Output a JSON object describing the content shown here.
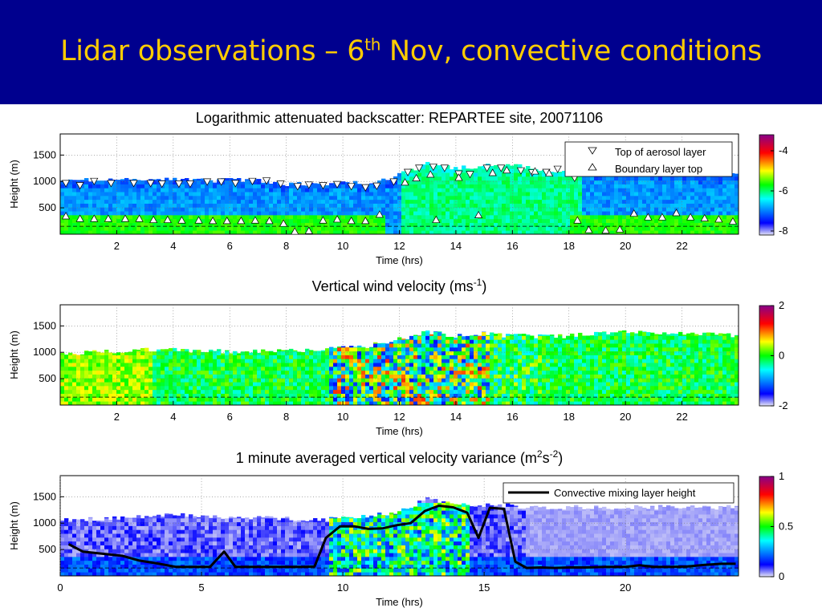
{
  "slide": {
    "title_main": "Lidar observations – 6",
    "title_sup": "th",
    "title_rest": " Nov, convective conditions",
    "banner_color": "#00008e",
    "title_color": "#ffcc00"
  },
  "chart_data": [
    {
      "type": "heatmap",
      "title": "Logarithmic attenuated backscatter: REPARTEE site, 20071106",
      "xlabel": "Time (hrs)",
      "ylabel": "Height (m)",
      "xlim": [
        0,
        24
      ],
      "ylim": [
        0,
        1900
      ],
      "xticks": [
        2,
        4,
        6,
        8,
        10,
        12,
        14,
        16,
        18,
        20,
        22
      ],
      "yticks": [
        500,
        1000,
        1500
      ],
      "colorbar": {
        "ticks": [
          "-4",
          "-6",
          "-8"
        ],
        "range": [
          -8.2,
          -3.2
        ]
      },
      "legend": {
        "placement": "top-right",
        "entries": [
          {
            "marker": "triangle-down",
            "label": "Top of aerosol layer"
          },
          {
            "marker": "triangle-up",
            "label": "Boundary layer top"
          }
        ]
      },
      "top_of_aerosol_layer": [
        [
          0.2,
          960
        ],
        [
          0.7,
          920
        ],
        [
          1.2,
          1000
        ],
        [
          1.8,
          960
        ],
        [
          2.6,
          960
        ],
        [
          3.2,
          960
        ],
        [
          3.6,
          950
        ],
        [
          4.2,
          950
        ],
        [
          4.6,
          950
        ],
        [
          5.2,
          990
        ],
        [
          5.7,
          990
        ],
        [
          6.2,
          960
        ],
        [
          6.8,
          1000
        ],
        [
          7.3,
          1010
        ],
        [
          7.8,
          950
        ],
        [
          8.4,
          900
        ],
        [
          8.8,
          930
        ],
        [
          9.3,
          920
        ],
        [
          9.8,
          940
        ],
        [
          10.3,
          900
        ],
        [
          10.8,
          880
        ],
        [
          11.2,
          910
        ],
        [
          11.8,
          990
        ],
        [
          12.3,
          1170
        ],
        [
          12.7,
          1250
        ],
        [
          13.2,
          1270
        ],
        [
          13.6,
          1250
        ],
        [
          14.1,
          1140
        ],
        [
          14.5,
          1130
        ],
        [
          15.1,
          1250
        ],
        [
          15.6,
          1250
        ],
        [
          16.3,
          1200
        ],
        [
          16.7,
          1160
        ],
        [
          17.2,
          1170
        ],
        [
          17.6,
          1230
        ],
        [
          18.2,
          1060
        ]
      ],
      "boundary_layer_top": [
        [
          0.2,
          350
        ],
        [
          0.7,
          300
        ],
        [
          1.2,
          300
        ],
        [
          1.7,
          300
        ],
        [
          2.3,
          300
        ],
        [
          2.8,
          300
        ],
        [
          3.3,
          280
        ],
        [
          3.8,
          280
        ],
        [
          4.3,
          270
        ],
        [
          4.9,
          270
        ],
        [
          5.4,
          260
        ],
        [
          5.9,
          260
        ],
        [
          6.4,
          260
        ],
        [
          6.9,
          270
        ],
        [
          7.4,
          260
        ],
        [
          7.9,
          210
        ],
        [
          8.3,
          60
        ],
        [
          8.8,
          70
        ],
        [
          9.3,
          270
        ],
        [
          9.8,
          290
        ],
        [
          10.3,
          260
        ],
        [
          10.8,
          260
        ],
        [
          11.3,
          380
        ],
        [
          12.2,
          990
        ],
        [
          12.6,
          1070
        ],
        [
          13.1,
          1140
        ],
        [
          13.3,
          280
        ],
        [
          14.1,
          1080
        ],
        [
          14.8,
          370
        ],
        [
          15.3,
          1170
        ],
        [
          15.8,
          1220
        ],
        [
          16.8,
          1200
        ],
        [
          17.3,
          1160
        ],
        [
          18.3,
          270
        ],
        [
          18.7,
          90
        ],
        [
          19.3,
          80
        ],
        [
          19.8,
          100
        ],
        [
          20.3,
          400
        ],
        [
          20.8,
          330
        ],
        [
          21.3,
          330
        ],
        [
          21.8,
          410
        ],
        [
          22.3,
          330
        ],
        [
          22.8,
          310
        ],
        [
          23.3,
          290
        ],
        [
          23.8,
          250
        ]
      ]
    },
    {
      "type": "heatmap",
      "title_main": "Vertical wind velocity (ms",
      "title_sup": "-1",
      "title_end": ")",
      "xlabel": "Time (hrs)",
      "ylabel": "Height (m)",
      "xlim": [
        0,
        24
      ],
      "ylim": [
        0,
        1900
      ],
      "xticks": [
        2,
        4,
        6,
        8,
        10,
        12,
        14,
        16,
        18,
        20,
        22
      ],
      "yticks": [
        500,
        1000,
        1500
      ],
      "colorbar": {
        "ticks": [
          "2",
          "0",
          "-2"
        ],
        "range": [
          -2,
          2
        ]
      }
    },
    {
      "type": "heatmap",
      "title_main": "1 minute averaged vertical velocity variance (m",
      "title_sup1": "2",
      "title_mid": "s",
      "title_sup2": "-2",
      "title_end": ")",
      "xlabel": "Time (hrs)",
      "ylabel": "Height (m)",
      "xlim": [
        0,
        24
      ],
      "ylim": [
        0,
        1900
      ],
      "xticks": [
        0,
        5,
        10,
        15,
        20
      ],
      "yticks": [
        500,
        1000,
        1500
      ],
      "colorbar": {
        "ticks": [
          "1",
          "0.5",
          "0"
        ],
        "range": [
          0,
          1
        ]
      },
      "legend": {
        "placement": "top-right",
        "entries": [
          {
            "marker": "line",
            "label": "Convective mixing layer height"
          }
        ]
      },
      "series": [
        {
          "name": "Convective mixing layer height",
          "x": [
            0.3,
            0.8,
            1.5,
            2.2,
            2.8,
            3.5,
            4.1,
            4.8,
            5.3,
            5.8,
            6.2,
            7,
            7.8,
            8.6,
            9,
            9.4,
            9.9,
            10.4,
            10.9,
            11.4,
            11.9,
            12.4,
            12.9,
            13.4,
            13.9,
            14.4,
            14.8,
            15.2,
            15.7,
            16.1,
            16.5,
            17,
            17.5,
            18,
            18.6,
            19.3,
            20,
            20.5,
            21,
            21.6,
            22.2,
            22.8,
            23.4,
            23.9
          ],
          "y": [
            600,
            460,
            420,
            380,
            290,
            230,
            170,
            170,
            170,
            460,
            170,
            170,
            170,
            170,
            180,
            720,
            940,
            940,
            890,
            900,
            960,
            1000,
            1230,
            1330,
            1300,
            1200,
            720,
            1290,
            1270,
            270,
            150,
            160,
            150,
            160,
            160,
            170,
            170,
            200,
            170,
            170,
            180,
            210,
            230,
            230
          ]
        }
      ]
    }
  ]
}
